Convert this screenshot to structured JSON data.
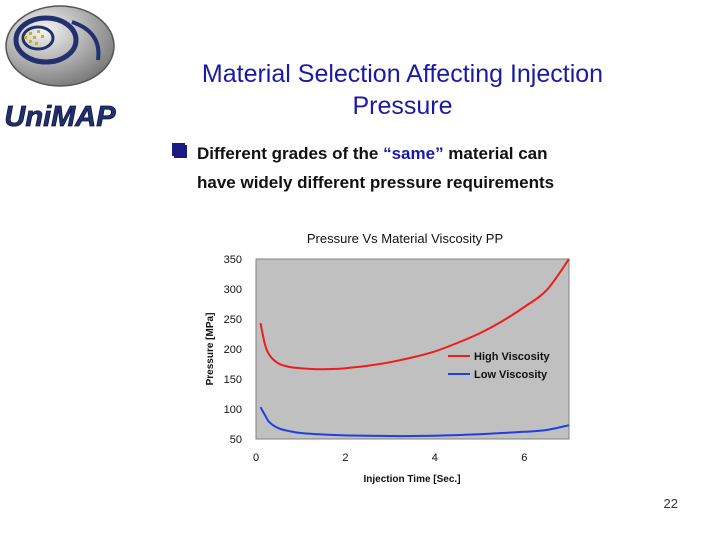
{
  "slide": {
    "title_line1": "Material Selection Affecting Injection",
    "title_line2": "Pressure",
    "bullet_pre": "Different grades of the ",
    "bullet_highlight": "“same”",
    "bullet_post_line1": " material can",
    "bullet_line2": "have widely different pressure requirements",
    "page_number": "22",
    "logo_text": "UniMAP"
  },
  "colors": {
    "title": "#1a1aa6",
    "plot_bg": "#c0c0c0",
    "high": "#ee1c1c",
    "low": "#1f3fe0"
  },
  "chart_data": {
    "type": "line",
    "title": "Pressure Vs Material Viscosity  PP",
    "xlabel": "Injection Time [Sec.]",
    "ylabel": "Pressure [MPa]",
    "xlim": [
      0,
      7
    ],
    "ylim": [
      50,
      350
    ],
    "xticks": [
      0,
      2,
      4,
      6
    ],
    "yticks": [
      50,
      100,
      150,
      200,
      250,
      300,
      350
    ],
    "legend_position": "right-middle",
    "series": [
      {
        "name": "High Viscosity",
        "color": "#ee1c1c",
        "x": [
          0.1,
          0.2,
          0.3,
          0.5,
          0.75,
          1.0,
          1.3,
          1.6,
          2.0,
          2.5,
          3.0,
          3.5,
          4.0,
          4.5,
          5.0,
          5.5,
          6.0,
          6.5,
          7.0
        ],
        "y": [
          243,
          208,
          190,
          176,
          170,
          168,
          166.5,
          166.5,
          168,
          172,
          178,
          186,
          196,
          210,
          226,
          246,
          270,
          298,
          350
        ]
      },
      {
        "name": "Low Viscosity",
        "color": "#1f3fe0",
        "x": [
          0.1,
          0.2,
          0.3,
          0.5,
          0.75,
          1.0,
          1.5,
          2.0,
          2.5,
          3.0,
          3.5,
          4.0,
          4.5,
          5.0,
          5.5,
          6.0,
          6.5,
          7.0
        ],
        "y": [
          103,
          90,
          78,
          68,
          63,
          60,
          57.5,
          56,
          55.5,
          55,
          55,
          55.5,
          56.5,
          58,
          60,
          62,
          65,
          73
        ]
      }
    ]
  }
}
